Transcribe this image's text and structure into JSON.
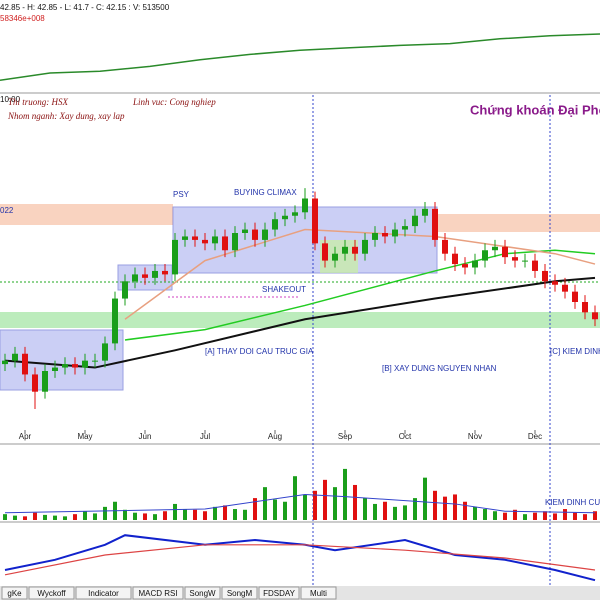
{
  "chart_data": [
    {
      "type": "line",
      "header": "42.85 - H: 42.85 - L: 41.7 - C: 42.15 : V: 513500",
      "subheader": "58346e+008",
      "x": [
        0,
        1,
        2,
        3,
        4,
        5,
        6,
        7,
        8,
        9,
        10,
        11,
        12
      ],
      "values": [
        8,
        20,
        23,
        31,
        42,
        51,
        58,
        62,
        66,
        69,
        77,
        82,
        85
      ],
      "color": "#2a8a2a",
      "xlim": [
        0,
        12
      ],
      "ylim": [
        0,
        100
      ]
    },
    {
      "type": "candlestick",
      "time": "10:00",
      "market": "Thi truong: HSX",
      "sector": "Linh vuc: Cong nghiep",
      "group": "Nhom nganh: Xay dung, xay lap",
      "title": "Chứng khoán Đại Phon",
      "year_label": "022",
      "annotations": [
        "PSY",
        "BUYING CLIMAX",
        "SHAKEOUT",
        "[A] THAY DOI CAU TRUC GIA",
        "[B] XAY DUNG NGUYEN NHAN",
        "[C] KIEM DINH"
      ],
      "up_color": "#1a9e1a",
      "down_color": "#e01010",
      "xlim": [
        0,
        59
      ],
      "ylim": [
        0,
        100
      ],
      "xticks": [
        {
          "value": 2,
          "label": "Apr"
        },
        {
          "value": 8,
          "label": "May"
        },
        {
          "value": 14,
          "label": "Jun"
        },
        {
          "value": 20,
          "label": "Jul"
        },
        {
          "value": 27,
          "label": "Aug"
        },
        {
          "value": 34,
          "label": "Sep"
        },
        {
          "value": 40,
          "label": "Oct"
        },
        {
          "value": 47,
          "label": "Nov"
        },
        {
          "value": 53,
          "label": "Dec"
        }
      ],
      "open": [
        22,
        23,
        25,
        19,
        14,
        20,
        21,
        22,
        21,
        23,
        23,
        28,
        41,
        46,
        48,
        47,
        49,
        48,
        58,
        59,
        58,
        57,
        59,
        55,
        60,
        61,
        58,
        61,
        64,
        65,
        66,
        70,
        57,
        52,
        54,
        56,
        54,
        58,
        60,
        59,
        61,
        62,
        65,
        67,
        58,
        54,
        51,
        50,
        52,
        55,
        56,
        53,
        52,
        52,
        49,
        46,
        45,
        43,
        40,
        37
      ],
      "high": [
        25,
        27,
        27,
        21,
        22,
        23,
        24,
        24,
        25,
        25,
        30,
        43,
        48,
        50,
        50,
        51,
        51,
        60,
        61,
        61,
        60,
        61,
        61,
        62,
        63,
        63,
        63,
        66,
        67,
        68,
        73,
        72,
        59,
        56,
        58,
        58,
        60,
        62,
        62,
        63,
        64,
        67,
        69,
        69,
        60,
        56,
        53,
        54,
        57,
        58,
        58,
        55,
        54,
        54,
        51,
        48,
        47,
        45,
        42,
        39
      ],
      "low": [
        20,
        21,
        17,
        9,
        12,
        18,
        19,
        19,
        19,
        21,
        21,
        26,
        39,
        44,
        45,
        45,
        46,
        46,
        56,
        56,
        55,
        55,
        53,
        53,
        58,
        56,
        56,
        59,
        62,
        63,
        64,
        55,
        50,
        50,
        52,
        52,
        52,
        56,
        57,
        57,
        59,
        60,
        63,
        56,
        52,
        49,
        48,
        48,
        50,
        53,
        51,
        50,
        50,
        47,
        44,
        43,
        41,
        38,
        35,
        33
      ],
      "close": [
        23,
        25,
        19,
        14,
        20,
        21,
        22,
        21,
        23,
        23,
        28,
        41,
        46,
        48,
        47,
        49,
        48,
        58,
        59,
        58,
        57,
        59,
        55,
        60,
        61,
        58,
        61,
        64,
        65,
        66,
        70,
        57,
        52,
        54,
        56,
        54,
        58,
        60,
        59,
        61,
        62,
        65,
        67,
        58,
        54,
        51,
        50,
        52,
        55,
        56,
        53,
        52,
        52,
        49,
        46,
        45,
        43,
        40,
        37,
        35
      ],
      "lines": [
        {
          "color": "#111111",
          "x": [
            0,
            9,
            17,
            30,
            43,
            55,
            59
          ],
          "values": [
            23,
            21,
            26,
            35,
            41,
            46,
            47
          ]
        },
        {
          "color": "#22cc22",
          "x": [
            12,
            20,
            30,
            43,
            50,
            55,
            59
          ],
          "values": [
            29,
            32,
            39,
            49,
            54,
            55,
            54
          ]
        },
        {
          "color": "#e8a080",
          "x": [
            12,
            20,
            30,
            43,
            55,
            59
          ],
          "values": [
            35,
            52,
            61,
            59,
            54,
            51
          ]
        }
      ]
    },
    {
      "type": "volume",
      "annotation": "KIEM DINH CUN",
      "xlim": [
        0,
        59
      ],
      "ylim": [
        0,
        100
      ],
      "values": [
        8,
        6,
        5,
        10,
        7,
        6,
        5,
        8,
        12,
        9,
        18,
        25,
        14,
        10,
        9,
        8,
        12,
        22,
        15,
        14,
        12,
        18,
        20,
        15,
        14,
        30,
        45,
        28,
        25,
        60,
        35,
        40,
        55,
        45,
        70,
        48,
        30,
        22,
        25,
        18,
        20,
        30,
        58,
        40,
        32,
        35,
        25,
        18,
        15,
        12,
        10,
        14,
        8,
        10,
        12,
        9,
        15,
        10,
        8,
        12
      ],
      "ma": {
        "color": "#3344cc",
        "x": [
          0,
          20,
          30,
          34,
          45,
          50,
          59
        ],
        "values": [
          10,
          15,
          35,
          32,
          22,
          12,
          10
        ]
      }
    },
    {
      "type": "line",
      "xlim": [
        0,
        59
      ],
      "ylim": [
        0,
        100
      ],
      "series": [
        {
          "color": "#1122cc",
          "x": [
            0,
            5,
            10,
            12,
            20,
            25,
            30,
            33,
            40,
            45,
            50,
            55,
            59
          ],
          "values": [
            25,
            42,
            67,
            83,
            67,
            75,
            67,
            58,
            75,
            50,
            42,
            25,
            8
          ]
        },
        {
          "color": "#dd4444",
          "x": [
            0,
            10,
            20,
            30,
            40,
            50,
            59
          ],
          "values": [
            17,
            50,
            67,
            67,
            58,
            45,
            25
          ]
        }
      ]
    },
    {
      "tabs": [
        "gKe",
        "Wyckoff",
        "Indicator",
        "MACD RSI",
        "SongW",
        "SongM",
        "FDSDAY",
        "Multi"
      ]
    }
  ]
}
